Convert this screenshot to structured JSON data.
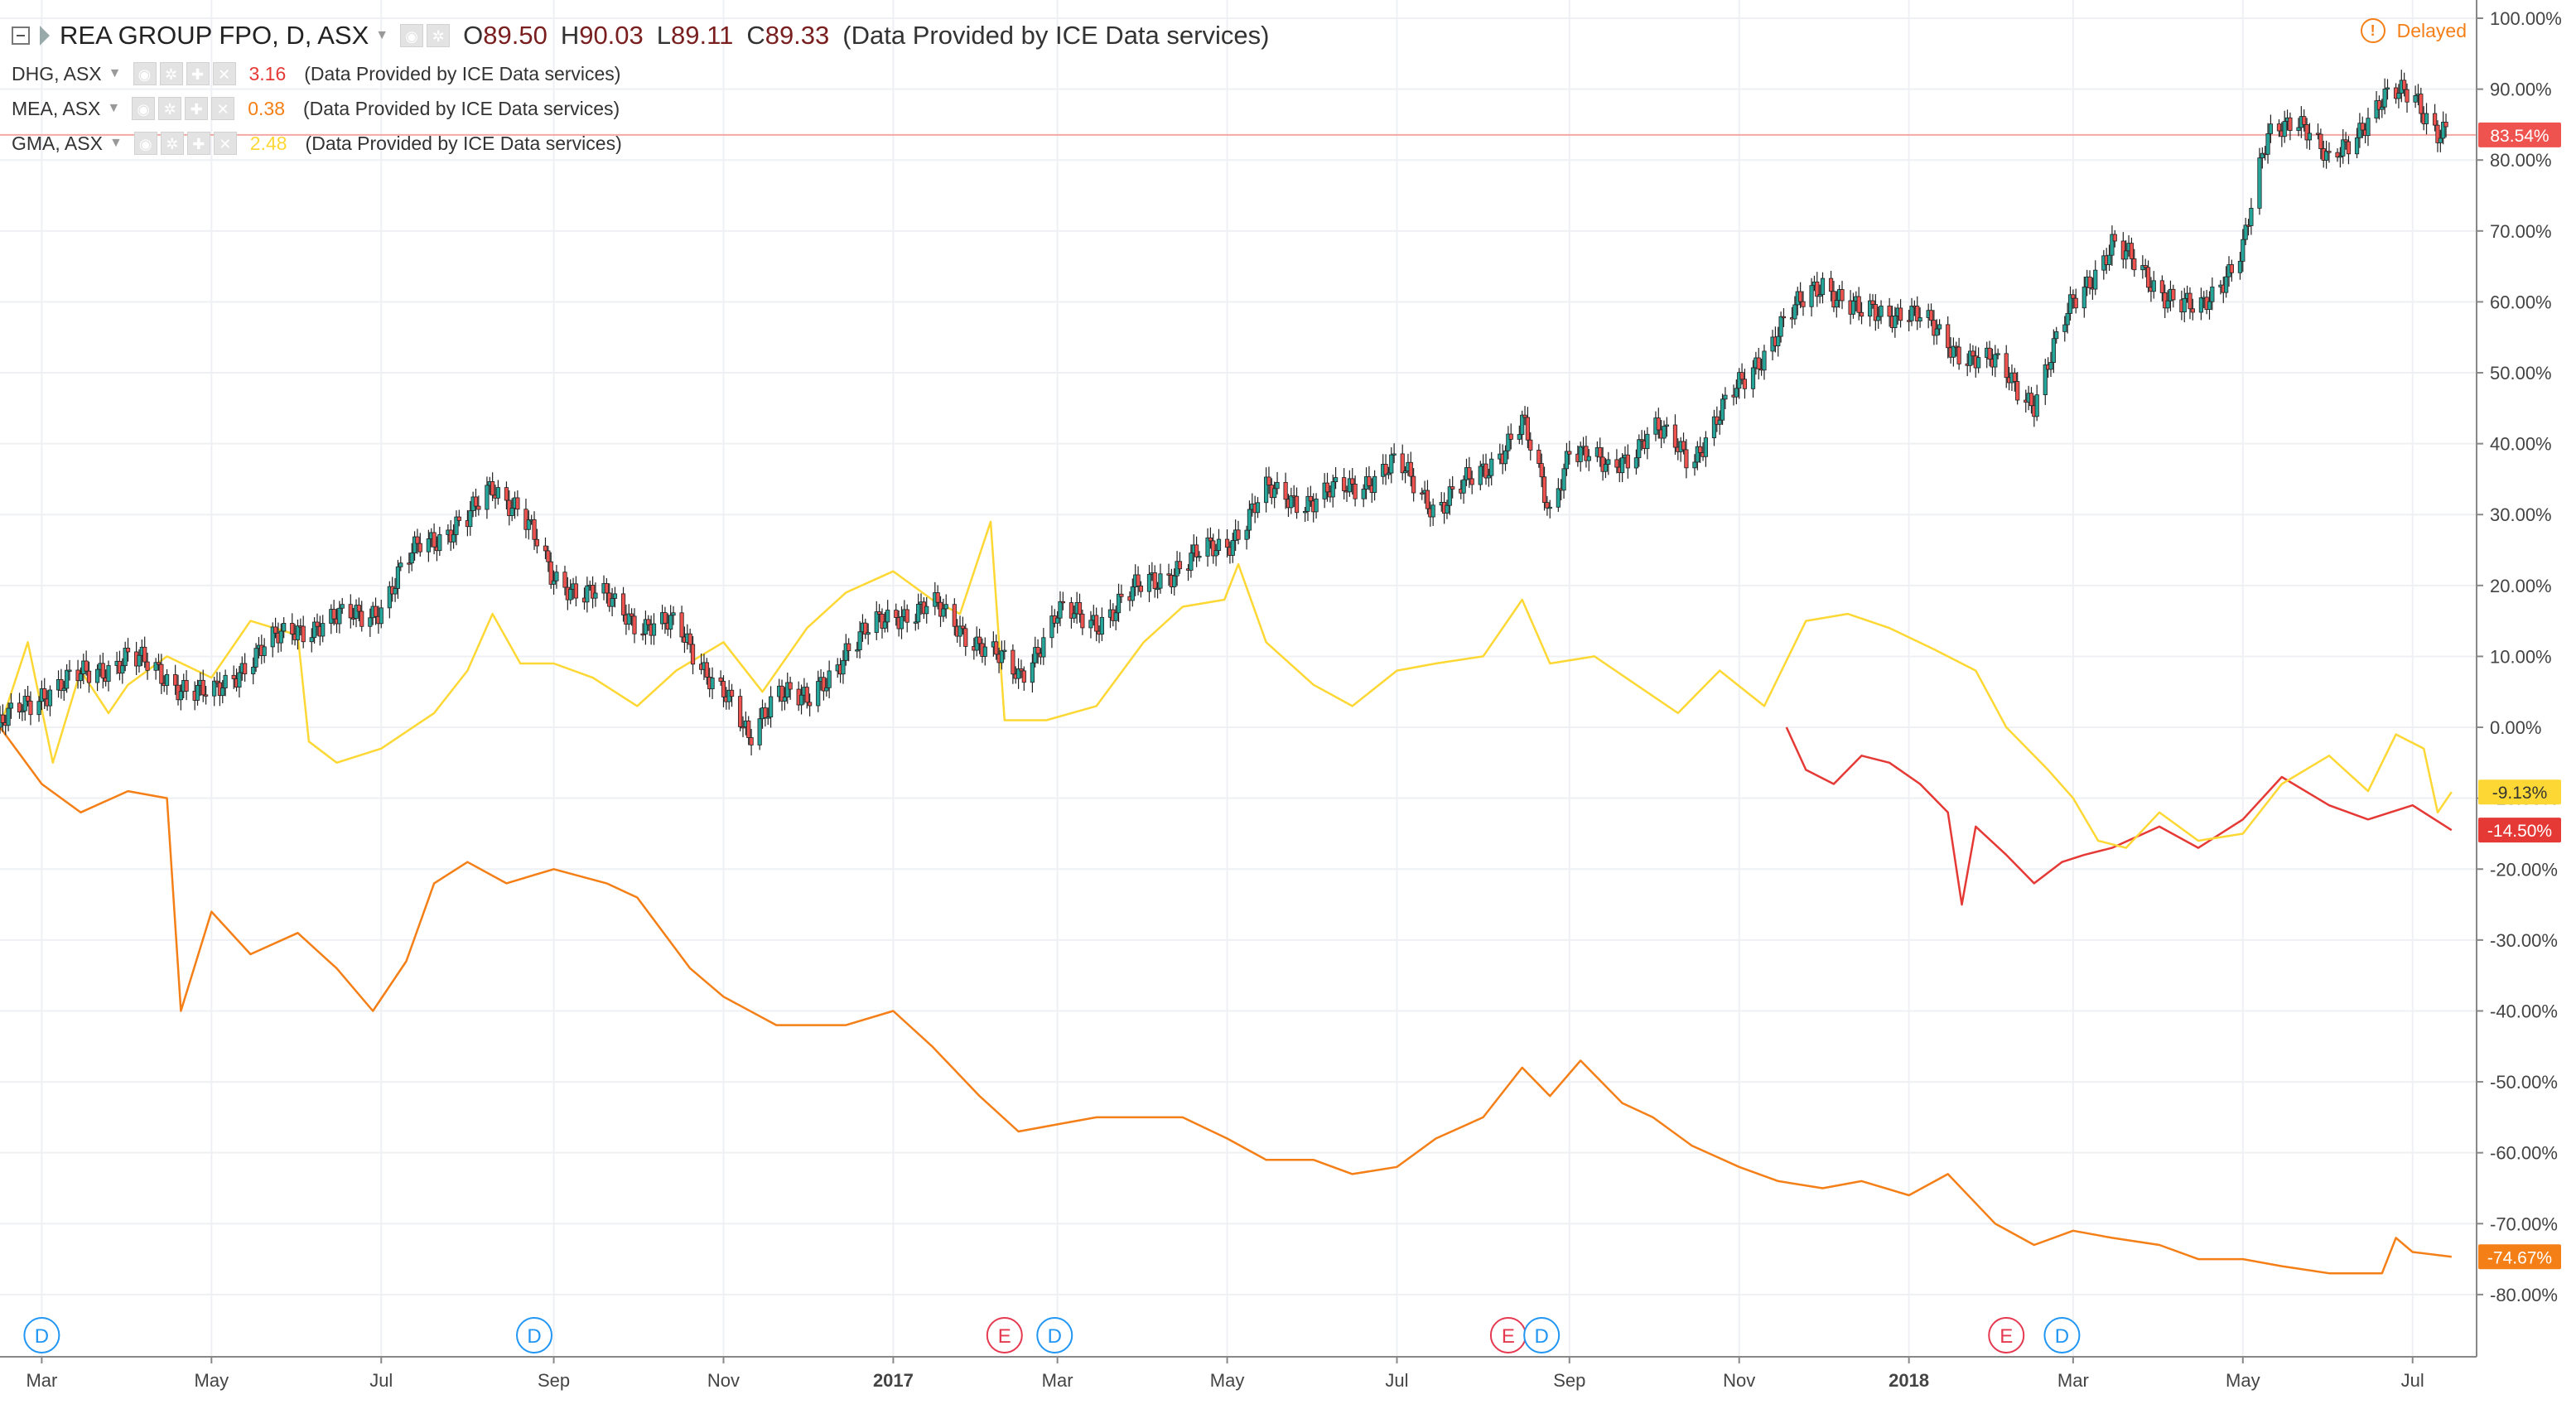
{
  "header": {
    "main_symbol": "REA GROUP FPO, D, ASX",
    "ohlc": [
      {
        "label": "O",
        "value": "89.50"
      },
      {
        "label": "H",
        "value": "90.03"
      },
      {
        "label": "L",
        "value": "89.11"
      },
      {
        "label": "C",
        "value": "89.33"
      }
    ],
    "provider": "(Data Provided by ICE Data services)",
    "delayed_label": "Delayed",
    "compare": [
      {
        "symbol": "DHG, ASX",
        "value": "3.16",
        "color": "#e53935"
      },
      {
        "symbol": "MEA, ASX",
        "value": "0.38",
        "color": "#f57f17"
      },
      {
        "symbol": "GMA, ASX",
        "value": "2.48",
        "color": "#fdd835"
      }
    ]
  },
  "chart_data": {
    "type": "line",
    "y_unit": "percent change",
    "ylim": [
      -82,
      100
    ],
    "y_ticks": [
      100,
      90,
      80,
      70,
      60,
      50,
      40,
      30,
      20,
      10,
      0,
      -10,
      -20,
      -30,
      -40,
      -50,
      -60,
      -70,
      -80
    ],
    "y_tick_labels": [
      "100.00%",
      "90.00%",
      "80.00%",
      "70.00%",
      "60.00%",
      "50.00%",
      "40.00%",
      "30.00%",
      "20.00%",
      "10.00%",
      "0.00%",
      "-10.00%",
      "-20.00%",
      "-30.00%",
      "-40.00%",
      "-50.00%",
      "-60.00%",
      "-70.00%",
      "-80.00%"
    ],
    "x_range": [
      "2016-02-15",
      "2018-07-24"
    ],
    "x_ticks": [
      {
        "date": "2016-03-01",
        "label": "Mar"
      },
      {
        "date": "2016-05-01",
        "label": "May"
      },
      {
        "date": "2016-07-01",
        "label": "Jul"
      },
      {
        "date": "2016-09-01",
        "label": "Sep"
      },
      {
        "date": "2016-11-01",
        "label": "Nov"
      },
      {
        "date": "2017-01-01",
        "label": "2017"
      },
      {
        "date": "2017-03-01",
        "label": "Mar"
      },
      {
        "date": "2017-05-01",
        "label": "May"
      },
      {
        "date": "2017-07-01",
        "label": "Jul"
      },
      {
        "date": "2017-09-01",
        "label": "Sep"
      },
      {
        "date": "2017-11-01",
        "label": "Nov"
      },
      {
        "date": "2018-01-01",
        "label": "2018"
      },
      {
        "date": "2018-03-01",
        "label": "Mar"
      },
      {
        "date": "2018-05-01",
        "label": "May"
      },
      {
        "date": "2018-07-01",
        "label": "Jul"
      }
    ],
    "grid": true,
    "series": [
      {
        "name": "REA GROUP FPO, D, ASX",
        "style": "candlestick",
        "up_color": "#26a69a",
        "down_color": "#ef5350",
        "points": [
          [
            "2016-02-15",
            0
          ],
          [
            "2016-03-01",
            5
          ],
          [
            "2016-03-15",
            7
          ],
          [
            "2016-04-01",
            10
          ],
          [
            "2016-04-15",
            7
          ],
          [
            "2016-05-01",
            4
          ],
          [
            "2016-05-15",
            10
          ],
          [
            "2016-06-01",
            14
          ],
          [
            "2016-06-15",
            15
          ],
          [
            "2016-07-01",
            17
          ],
          [
            "2016-07-15",
            26
          ],
          [
            "2016-08-01",
            29
          ],
          [
            "2016-08-10",
            34
          ],
          [
            "2016-08-20",
            31
          ],
          [
            "2016-08-31",
            21
          ],
          [
            "2016-09-15",
            19
          ],
          [
            "2016-10-01",
            15
          ],
          [
            "2016-10-15",
            14
          ],
          [
            "2016-11-01",
            5
          ],
          [
            "2016-11-10",
            -2
          ],
          [
            "2016-11-20",
            6
          ],
          [
            "2016-12-01",
            3
          ],
          [
            "2016-12-15",
            11
          ],
          [
            "2017-01-01",
            16
          ],
          [
            "2017-01-15",
            17
          ],
          [
            "2017-02-01",
            12
          ],
          [
            "2017-02-15",
            7
          ],
          [
            "2017-03-01",
            16
          ],
          [
            "2017-03-15",
            15
          ],
          [
            "2017-04-01",
            20
          ],
          [
            "2017-04-15",
            23
          ],
          [
            "2017-05-01",
            26
          ],
          [
            "2017-05-15",
            33
          ],
          [
            "2017-06-01",
            32
          ],
          [
            "2017-06-15",
            34
          ],
          [
            "2017-07-01",
            37
          ],
          [
            "2017-07-15",
            31
          ],
          [
            "2017-08-01",
            36
          ],
          [
            "2017-08-15",
            43
          ],
          [
            "2017-08-25",
            30
          ],
          [
            "2017-09-01",
            40
          ],
          [
            "2017-09-15",
            36
          ],
          [
            "2017-10-01",
            42
          ],
          [
            "2017-10-15",
            38
          ],
          [
            "2017-11-01",
            48
          ],
          [
            "2017-11-15",
            56
          ],
          [
            "2017-12-01",
            63
          ],
          [
            "2017-12-15",
            58
          ],
          [
            "2018-01-01",
            59
          ],
          [
            "2018-01-15",
            54
          ],
          [
            "2018-02-01",
            51
          ],
          [
            "2018-02-15",
            46
          ],
          [
            "2018-03-01",
            60
          ],
          [
            "2018-03-15",
            68
          ],
          [
            "2018-04-01",
            62
          ],
          [
            "2018-04-15",
            58
          ],
          [
            "2018-05-01",
            68
          ],
          [
            "2018-05-10",
            83
          ],
          [
            "2018-05-20",
            87
          ],
          [
            "2018-06-01",
            79
          ],
          [
            "2018-06-10",
            84
          ],
          [
            "2018-06-20",
            88
          ],
          [
            "2018-07-01",
            90
          ],
          [
            "2018-07-10",
            84
          ],
          [
            "2018-07-15",
            83.54
          ]
        ]
      },
      {
        "name": "DHG, ASX",
        "color": "#e53935",
        "points": [
          [
            "2017-11-18",
            0
          ],
          [
            "2017-11-25",
            -6
          ],
          [
            "2017-12-05",
            -8
          ],
          [
            "2017-12-15",
            -4
          ],
          [
            "2017-12-25",
            -5
          ],
          [
            "2018-01-05",
            -8
          ],
          [
            "2018-01-15",
            -12
          ],
          [
            "2018-01-20",
            -25
          ],
          [
            "2018-01-25",
            -14
          ],
          [
            "2018-02-05",
            -18
          ],
          [
            "2018-02-15",
            -22
          ],
          [
            "2018-02-25",
            -19
          ],
          [
            "2018-03-05",
            -18
          ],
          [
            "2018-03-15",
            -17
          ],
          [
            "2018-04-01",
            -14
          ],
          [
            "2018-04-15",
            -17
          ],
          [
            "2018-05-01",
            -13
          ],
          [
            "2018-05-15",
            -7
          ],
          [
            "2018-06-01",
            -11
          ],
          [
            "2018-06-15",
            -13
          ],
          [
            "2018-07-01",
            -11
          ],
          [
            "2018-07-15",
            -14.5
          ]
        ]
      },
      {
        "name": "MEA, ASX",
        "color": "#f57f17",
        "points": [
          [
            "2016-02-15",
            0
          ],
          [
            "2016-03-01",
            -8
          ],
          [
            "2016-03-15",
            -12
          ],
          [
            "2016-04-01",
            -9
          ],
          [
            "2016-04-15",
            -10
          ],
          [
            "2016-04-20",
            -40
          ],
          [
            "2016-05-01",
            -26
          ],
          [
            "2016-05-15",
            -32
          ],
          [
            "2016-06-01",
            -29
          ],
          [
            "2016-06-15",
            -34
          ],
          [
            "2016-06-28",
            -40
          ],
          [
            "2016-07-10",
            -33
          ],
          [
            "2016-07-20",
            -22
          ],
          [
            "2016-08-01",
            -19
          ],
          [
            "2016-08-15",
            -22
          ],
          [
            "2016-09-01",
            -20
          ],
          [
            "2016-09-20",
            -22
          ],
          [
            "2016-10-01",
            -24
          ],
          [
            "2016-10-20",
            -34
          ],
          [
            "2016-11-01",
            -38
          ],
          [
            "2016-11-20",
            -42
          ],
          [
            "2016-12-15",
            -42
          ],
          [
            "2017-01-01",
            -40
          ],
          [
            "2017-01-15",
            -45
          ],
          [
            "2017-02-01",
            -52
          ],
          [
            "2017-02-15",
            -57
          ],
          [
            "2017-03-01",
            -56
          ],
          [
            "2017-03-15",
            -55
          ],
          [
            "2017-04-15",
            -55
          ],
          [
            "2017-05-01",
            -58
          ],
          [
            "2017-05-15",
            -61
          ],
          [
            "2017-06-01",
            -61
          ],
          [
            "2017-06-15",
            -63
          ],
          [
            "2017-07-01",
            -62
          ],
          [
            "2017-07-15",
            -58
          ],
          [
            "2017-08-01",
            -55
          ],
          [
            "2017-08-15",
            -48
          ],
          [
            "2017-08-25",
            -52
          ],
          [
            "2017-09-05",
            -47
          ],
          [
            "2017-09-20",
            -53
          ],
          [
            "2017-10-01",
            -55
          ],
          [
            "2017-10-15",
            -59
          ],
          [
            "2017-11-01",
            -62
          ],
          [
            "2017-11-15",
            -64
          ],
          [
            "2017-12-01",
            -65
          ],
          [
            "2017-12-15",
            -64
          ],
          [
            "2018-01-01",
            -66
          ],
          [
            "2018-01-15",
            -63
          ],
          [
            "2018-02-01",
            -70
          ],
          [
            "2018-02-15",
            -73
          ],
          [
            "2018-03-01",
            -71
          ],
          [
            "2018-03-15",
            -72
          ],
          [
            "2018-04-01",
            -73
          ],
          [
            "2018-04-15",
            -75
          ],
          [
            "2018-05-01",
            -75
          ],
          [
            "2018-05-15",
            -76
          ],
          [
            "2018-06-01",
            -77
          ],
          [
            "2018-06-20",
            -77
          ],
          [
            "2018-06-25",
            -72
          ],
          [
            "2018-07-01",
            -74
          ],
          [
            "2018-07-15",
            -74.67
          ]
        ]
      },
      {
        "name": "GMA, ASX",
        "color": "#fdd835",
        "points": [
          [
            "2016-02-15",
            0
          ],
          [
            "2016-02-25",
            12
          ],
          [
            "2016-03-05",
            -5
          ],
          [
            "2016-03-15",
            8
          ],
          [
            "2016-03-25",
            2
          ],
          [
            "2016-04-01",
            6
          ],
          [
            "2016-04-15",
            10
          ],
          [
            "2016-05-01",
            7
          ],
          [
            "2016-05-15",
            15
          ],
          [
            "2016-06-01",
            13
          ],
          [
            "2016-06-05",
            -2
          ],
          [
            "2016-06-15",
            -5
          ],
          [
            "2016-07-01",
            -3
          ],
          [
            "2016-07-20",
            2
          ],
          [
            "2016-08-01",
            8
          ],
          [
            "2016-08-10",
            16
          ],
          [
            "2016-08-20",
            9
          ],
          [
            "2016-09-01",
            9
          ],
          [
            "2016-09-15",
            7
          ],
          [
            "2016-10-01",
            3
          ],
          [
            "2016-10-15",
            8
          ],
          [
            "2016-11-01",
            12
          ],
          [
            "2016-11-15",
            5
          ],
          [
            "2016-12-01",
            14
          ],
          [
            "2016-12-15",
            19
          ],
          [
            "2017-01-01",
            22
          ],
          [
            "2017-01-15",
            18
          ],
          [
            "2017-01-25",
            16
          ],
          [
            "2017-02-05",
            29
          ],
          [
            "2017-02-10",
            1
          ],
          [
            "2017-02-25",
            1
          ],
          [
            "2017-03-15",
            3
          ],
          [
            "2017-04-01",
            12
          ],
          [
            "2017-04-15",
            17
          ],
          [
            "2017-04-30",
            18
          ],
          [
            "2017-05-05",
            23
          ],
          [
            "2017-05-15",
            12
          ],
          [
            "2017-06-01",
            6
          ],
          [
            "2017-06-15",
            3
          ],
          [
            "2017-07-01",
            8
          ],
          [
            "2017-07-15",
            9
          ],
          [
            "2017-08-01",
            10
          ],
          [
            "2017-08-15",
            18
          ],
          [
            "2017-08-25",
            9
          ],
          [
            "2017-09-10",
            10
          ],
          [
            "2017-09-25",
            6
          ],
          [
            "2017-10-10",
            2
          ],
          [
            "2017-10-25",
            8
          ],
          [
            "2017-11-10",
            3
          ],
          [
            "2017-11-25",
            15
          ],
          [
            "2017-12-10",
            16
          ],
          [
            "2017-12-25",
            14
          ],
          [
            "2018-01-10",
            11
          ],
          [
            "2018-01-25",
            8
          ],
          [
            "2018-02-05",
            0
          ],
          [
            "2018-02-20",
            -6
          ],
          [
            "2018-03-01",
            -10
          ],
          [
            "2018-03-10",
            -16
          ],
          [
            "2018-03-20",
            -17
          ],
          [
            "2018-04-01",
            -12
          ],
          [
            "2018-04-15",
            -16
          ],
          [
            "2018-05-01",
            -15
          ],
          [
            "2018-05-15",
            -8
          ],
          [
            "2018-06-01",
            -4
          ],
          [
            "2018-06-15",
            -9
          ],
          [
            "2018-06-25",
            -1
          ],
          [
            "2018-07-05",
            -3
          ],
          [
            "2018-07-10",
            -12
          ],
          [
            "2018-07-15",
            -9.13
          ]
        ]
      }
    ],
    "last_value_labels": [
      {
        "series": "REA GROUP FPO, D, ASX",
        "value": 83.54,
        "text": "83.54%",
        "bg": "#ef5350",
        "fg": "#ffffff"
      },
      {
        "series": "GMA, ASX",
        "value": -9.13,
        "text": "-9.13%",
        "bg": "#fdd835",
        "fg": "#333333"
      },
      {
        "series": "DHG, ASX",
        "value": -14.5,
        "text": "-14.50%",
        "bg": "#e53935",
        "fg": "#ffffff"
      },
      {
        "series": "MEA, ASX",
        "value": -74.67,
        "text": "-74.67%",
        "bg": "#f57f17",
        "fg": "#ffffff"
      }
    ],
    "current_price_line": 83.54,
    "events": [
      {
        "date": "2016-03-01",
        "type": "D"
      },
      {
        "date": "2016-08-25",
        "type": "D"
      },
      {
        "date": "2017-02-10",
        "type": "E"
      },
      {
        "date": "2017-02-28",
        "type": "D"
      },
      {
        "date": "2017-08-10",
        "type": "E"
      },
      {
        "date": "2017-08-22",
        "type": "D"
      },
      {
        "date": "2018-02-05",
        "type": "E"
      },
      {
        "date": "2018-02-25",
        "type": "D"
      }
    ],
    "event_colors": {
      "D": "#2196f3",
      "E": "#e53950"
    }
  }
}
